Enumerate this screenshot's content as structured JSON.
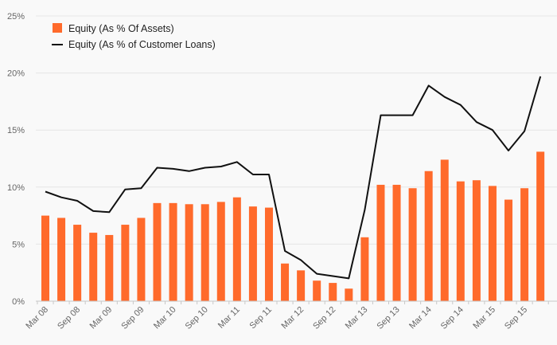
{
  "chart_data": {
    "type": "bar",
    "categories": [
      "Mar 08",
      "Jun 08",
      "Sep 08",
      "Dec 08",
      "Mar 09",
      "Jun 09",
      "Sep 09",
      "Dec 09",
      "Mar 10",
      "Jun 10",
      "Sep 10",
      "Dec 10",
      "Mar 11",
      "Jun 11",
      "Sep 11",
      "Dec 11",
      "Mar 12",
      "Jun 12",
      "Sep 12",
      "Dec 12",
      "Mar 13",
      "Jun 13",
      "Sep 13",
      "Dec 13",
      "Mar 14",
      "Jun 14",
      "Sep 14",
      "Dec 14",
      "Mar 15",
      "Jun 15",
      "Sep 15",
      "Dec 15"
    ],
    "x_tick_labels": [
      "Mar 08",
      "Sep 08",
      "Mar 09",
      "Sep 09",
      "Mar 10",
      "Sep 10",
      "Mar 11",
      "Sep 11",
      "Mar 12",
      "Sep 12",
      "Mar 13",
      "Sep 13",
      "Mar 14",
      "Sep 14",
      "Mar 15",
      "Sep 15"
    ],
    "series": [
      {
        "name": "Equity (As % Of Assets)",
        "type": "bar",
        "color": "#ff6a2b",
        "values": [
          7.5,
          7.3,
          6.7,
          6.0,
          5.8,
          6.7,
          7.3,
          8.6,
          8.6,
          8.5,
          8.5,
          8.7,
          9.1,
          8.3,
          8.2,
          3.3,
          2.7,
          1.8,
          1.6,
          1.1,
          5.6,
          10.2,
          10.2,
          9.9,
          11.4,
          12.4,
          10.5,
          10.6,
          10.1,
          8.9,
          9.9,
          13.1
        ]
      },
      {
        "name": "Equity (As % of Customer Loans)",
        "type": "line",
        "color": "#111111",
        "values": [
          9.6,
          9.1,
          8.8,
          7.9,
          7.8,
          9.8,
          9.9,
          11.7,
          11.6,
          11.4,
          11.7,
          11.8,
          12.2,
          11.1,
          11.1,
          4.4,
          3.6,
          2.4,
          2.2,
          2.0,
          8.0,
          16.3,
          16.3,
          16.3,
          18.9,
          17.9,
          17.2,
          15.7,
          15.0,
          13.2,
          14.9,
          19.7
        ]
      }
    ],
    "y_tick_labels": [
      "0%",
      "5%",
      "10%",
      "15%",
      "20%",
      "25%"
    ],
    "ylim": [
      0,
      25
    ],
    "grid": true,
    "legend_position": "top-left",
    "title": "",
    "xlabel": "",
    "ylabel": ""
  }
}
